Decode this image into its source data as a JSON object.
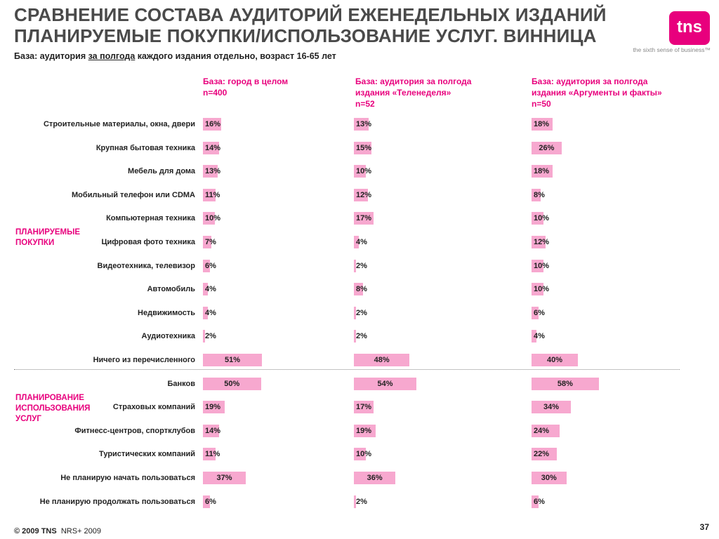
{
  "header": {
    "title_line1": "СРАВНЕНИЕ СОСТАВА АУДИТОРИЙ ЕЖЕНЕДЕЛЬНЫХ ИЗДАНИЙ",
    "title_line2": "ПЛАНИРУЕМЫЕ ПОКУПКИ/ИСПОЛЬЗОВАНИЕ УСЛУГ. ВИННИЦА",
    "subtitle_pre": "База: аудитория ",
    "subtitle_underlined": "за полгода",
    "subtitle_post": " каждого издания отдельно, возраст 16-65 лет"
  },
  "logo": {
    "text": "tns",
    "tagline": "the sixth sense of business™",
    "color": "#e8007d"
  },
  "sections": [
    {
      "label_line1": "ПЛАНИРУЕМЫЕ",
      "label_line2": "ПОКУПКИ",
      "label_line3": ""
    },
    {
      "label_line1": "ПЛАНИРОВАНИЕ",
      "label_line2": "ИСПОЛЬЗОВАНИЯ",
      "label_line3": "УСЛУГ"
    }
  ],
  "chart_data": {
    "type": "bar",
    "orientation": "horizontal",
    "bar_color": "#f7a8cf",
    "value_unit": "%",
    "categories": [
      "Строительные материалы, окна, двери",
      "Крупная бытовая техника",
      "Мебель для дома",
      "Мобильный телефон или CDMA",
      "Компьютерная техника",
      "Цифровая фото техника",
      "Видеотехника, телевизор",
      "Автомобиль",
      "Недвижимость",
      "Аудиотехника",
      "Ничего из перечисленного",
      "Банков",
      "Страховых компаний",
      "Фитнесс-центров, спортклубов",
      "Туристических компаний",
      "Не планирую начать пользоваться",
      "Не планирую продолжать пользоваться"
    ],
    "series": [
      {
        "name_line1": "База: город в целом",
        "name_line2": "n=400",
        "name_line3": "",
        "values": [
          16,
          14,
          13,
          11,
          10,
          7,
          6,
          4,
          4,
          2,
          51,
          50,
          19,
          14,
          11,
          37,
          6
        ]
      },
      {
        "name_line1": "База: аудитория за полгода",
        "name_line2": "издания «Теленеделя»",
        "name_line3": "n=52",
        "values": [
          13,
          15,
          10,
          12,
          17,
          4,
          2,
          8,
          2,
          2,
          48,
          54,
          17,
          19,
          10,
          36,
          2
        ]
      },
      {
        "name_line1": "База: аудитория за полгода",
        "name_line2": "издания «Аргументы и факты»",
        "name_line3": "n=50",
        "values": [
          18,
          26,
          18,
          8,
          10,
          12,
          10,
          10,
          6,
          4,
          40,
          58,
          34,
          24,
          22,
          30,
          6
        ]
      }
    ]
  },
  "footer": {
    "copyright": "© 2009 TNS",
    "source": "NRS+ 2009",
    "page": "37"
  }
}
